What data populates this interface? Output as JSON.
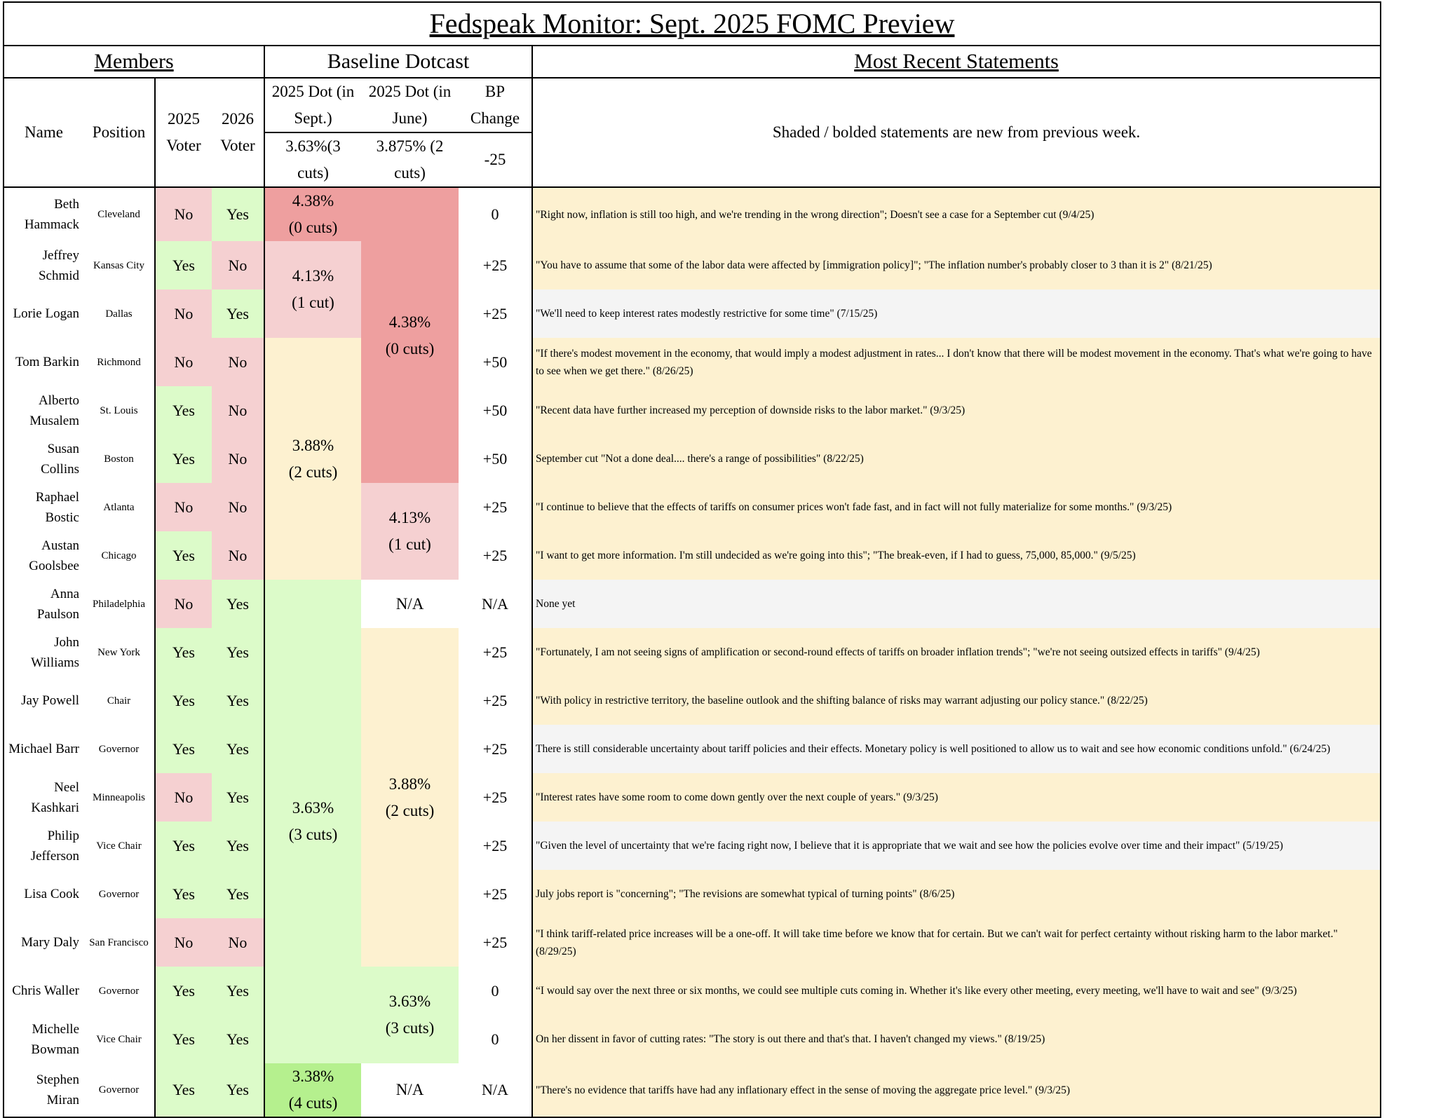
{
  "title": "Fedspeak Monitor: Sept. 2025 FOMC Preview",
  "sections": {
    "members": "Members",
    "dotcast": "Baseline Dotcast",
    "statements": "Most Recent Statements"
  },
  "columns": {
    "name": "Name",
    "position": "Position",
    "voter_2025": "2025 Voter",
    "voter_2026": "2026 Voter",
    "dot_sept": "2025 Dot (in Sept.)",
    "dot_june": "2025 Dot (in June)",
    "bp_change": "BP Change",
    "statements_note": "Shaded / bolded statements are new from previous week."
  },
  "median": {
    "dot_sept": "3.63%(3 cuts)",
    "dot_june": "3.875% (2 cuts)",
    "bp_change": "-25"
  },
  "voter_colors": {
    "Yes": "#dcfbc9",
    "No": "#f5d0d1"
  },
  "statement_colors": {
    "shaded": "#fdf1d0",
    "plain": "#f4f4f4"
  },
  "rows": [
    {
      "name": "Beth Hammack",
      "position": "Cleveland",
      "voter_2025": "No",
      "voter_2026": "Yes",
      "bp_change": "0",
      "statement": "\"Right now, inflation is still too high, and we're trending in the wrong direction\"; Doesn't see a case for a September cut (9/4/25)",
      "shaded": true
    },
    {
      "name": "Jeffrey Schmid",
      "position": "Kansas City",
      "voter_2025": "Yes",
      "voter_2026": "No",
      "bp_change": "+25",
      "statement": "\"You have to assume that some of the labor data were affected by [immigration policy]\"; \"The inflation number's probably closer to 3 than it is 2\" (8/21/25)",
      "shaded": true
    },
    {
      "name": "Lorie Logan",
      "position": "Dallas",
      "voter_2025": "No",
      "voter_2026": "Yes",
      "bp_change": "+25",
      "statement": "\"We'll need to keep interest rates modestly restrictive for some time\" (7/15/25)",
      "shaded": false
    },
    {
      "name": "Tom Barkin",
      "position": "Richmond",
      "voter_2025": "No",
      "voter_2026": "No",
      "bp_change": "+50",
      "statement": "\"If there's modest movement in the economy, that would imply a modest adjustment in rates... I don't know that there will be modest movement in the economy. That's what we're going to have to see when we get there.\" (8/26/25)",
      "shaded": true
    },
    {
      "name": "Alberto Musalem",
      "position": "St. Louis",
      "voter_2025": "Yes",
      "voter_2026": "No",
      "bp_change": "+50",
      "statement": "\"Recent data have further increased my perception of downside risks to the labor market.\" (9/3/25)",
      "shaded": true
    },
    {
      "name": "Susan Collins",
      "position": "Boston",
      "voter_2025": "Yes",
      "voter_2026": "No",
      "bp_change": "+50",
      "statement": "September cut \"Not a done deal.... there's a range of possibilities\" (8/22/25)",
      "shaded": true
    },
    {
      "name": "Raphael Bostic",
      "position": "Atlanta",
      "voter_2025": "No",
      "voter_2026": "No",
      "bp_change": "+25",
      "statement": "\"I continue to believe that the effects of tariffs on consumer prices won't fade fast, and in fact will not fully materialize for some months.\" (9/3/25)",
      "shaded": true
    },
    {
      "name": "Austan Goolsbee",
      "position": "Chicago",
      "voter_2025": "Yes",
      "voter_2026": "No",
      "bp_change": "+25",
      "statement": "\"I want to get more information. I'm still undecided as we're going into this\"; \"The break-even, if I had to guess, 75,000, 85,000.\" (9/5/25)",
      "shaded": true
    },
    {
      "name": "Anna Paulson",
      "position": "Philadelphia",
      "voter_2025": "No",
      "voter_2026": "Yes",
      "bp_change": "N/A",
      "statement": "None yet",
      "shaded": false
    },
    {
      "name": "John Williams",
      "position": "New York",
      "voter_2025": "Yes",
      "voter_2026": "Yes",
      "bp_change": "+25",
      "statement": "\"Fortunately, I am not seeing signs of amplification or second-round effects of tariffs on broader inflation trends\"; \"we're not seeing outsized effects in tariffs\" (9/4/25)",
      "shaded": true
    },
    {
      "name": "Jay Powell",
      "position": "Chair",
      "voter_2025": "Yes",
      "voter_2026": "Yes",
      "bp_change": "+25",
      "statement": "\"With policy in restrictive territory, the baseline outlook and the shifting balance of risks may warrant adjusting our policy stance.\" (8/22/25)",
      "shaded": true
    },
    {
      "name": "Michael Barr",
      "position": "Governor",
      "voter_2025": "Yes",
      "voter_2026": "Yes",
      "bp_change": "+25",
      "statement": "There is still considerable uncertainty about tariff policies and their effects. Monetary policy is well positioned to allow us to wait and see how economic conditions unfold.\" (6/24/25)",
      "shaded": false
    },
    {
      "name": "Neel Kashkari",
      "position": "Minneapolis",
      "voter_2025": "No",
      "voter_2026": "Yes",
      "bp_change": "+25",
      "statement": "\"Interest rates have some room to come down gently over the next couple of years.\" (9/3/25)",
      "shaded": true
    },
    {
      "name": "Philip Jefferson",
      "position": "Vice Chair",
      "voter_2025": "Yes",
      "voter_2026": "Yes",
      "bp_change": "+25",
      "statement": "\"Given the level of uncertainty that we're facing right now, I believe that it is appropriate that we wait and see how the policies evolve over time and their impact\" (5/19/25)",
      "shaded": false
    },
    {
      "name": "Lisa Cook",
      "position": "Governor",
      "voter_2025": "Yes",
      "voter_2026": "Yes",
      "bp_change": "+25",
      "statement": "July jobs report is \"concerning\"; \"The revisions are somewhat typical of turning points\" (8/6/25)",
      "shaded": true
    },
    {
      "name": "Mary Daly",
      "position": "San Francisco",
      "voter_2025": "No",
      "voter_2026": "No",
      "bp_change": "+25",
      "statement": "\"I think tariff-related price increases will be a one-off. It will take time before we know that for certain. But we can't wait for perfect certainty without risking harm to the labor market.\" (8/29/25)",
      "shaded": true
    },
    {
      "name": "Chris Waller",
      "position": "Governor",
      "voter_2025": "Yes",
      "voter_2026": "Yes",
      "bp_change": "0",
      "statement": "“I would say over the next three or six months, we could see multiple cuts coming in. Whether it's like every other meeting, every meeting, we'll have to wait and see\" (9/3/25)",
      "shaded": true
    },
    {
      "name": "Michelle Bowman",
      "position": "Vice Chair",
      "voter_2025": "Yes",
      "voter_2026": "Yes",
      "bp_change": "0",
      "statement": "On her dissent in favor of cutting rates: \"The story is out there and that's that. I haven't changed my views.\" (8/19/25)",
      "shaded": true
    },
    {
      "name": "Stephen Miran",
      "position": "Governor",
      "voter_2025": "Yes",
      "voter_2026": "Yes",
      "bp_change": "N/A",
      "statement": "\"There's no evidence that tariffs have had any inflationary effect in the sense of moving the aggregate price level.\" (9/3/25)",
      "shaded": true
    }
  ],
  "dot_sept": [
    {
      "dot": "4.38%",
      "cuts": "(0 cuts)",
      "rows": 1,
      "color": "#ee9f9f"
    },
    {
      "dot": "4.13%",
      "cuts": "(1 cut)",
      "rows": 2,
      "color": "#f5d0d1"
    },
    {
      "dot": "3.88%",
      "cuts": "(2 cuts)",
      "rows": 5,
      "color": "#fdf1d0"
    },
    {
      "dot": "3.63%",
      "cuts": "(3 cuts)",
      "rows": 10,
      "color": "#dcfbc9"
    },
    {
      "dot": "3.38%",
      "cuts": "(4 cuts)",
      "rows": 1,
      "color": "#b5f08e"
    }
  ],
  "dot_june": [
    {
      "dot": "4.38%",
      "cuts": "(0 cuts)",
      "rows": 6,
      "color": "#ee9f9f"
    },
    {
      "dot": "4.13%",
      "cuts": "(1 cut)",
      "rows": 2,
      "color": "#f5d0d1"
    },
    {
      "dot": "N/A",
      "rows": 1,
      "color": "#ffffff"
    },
    {
      "dot": "3.88%",
      "cuts": "(2 cuts)",
      "rows": 7,
      "color": "#fdf1d0"
    },
    {
      "dot": "3.63%",
      "cuts": "(3 cuts)",
      "rows": 2,
      "color": "#dcfbc9"
    },
    {
      "dot": "N/A",
      "rows": 1,
      "color": "#ffffff"
    }
  ]
}
